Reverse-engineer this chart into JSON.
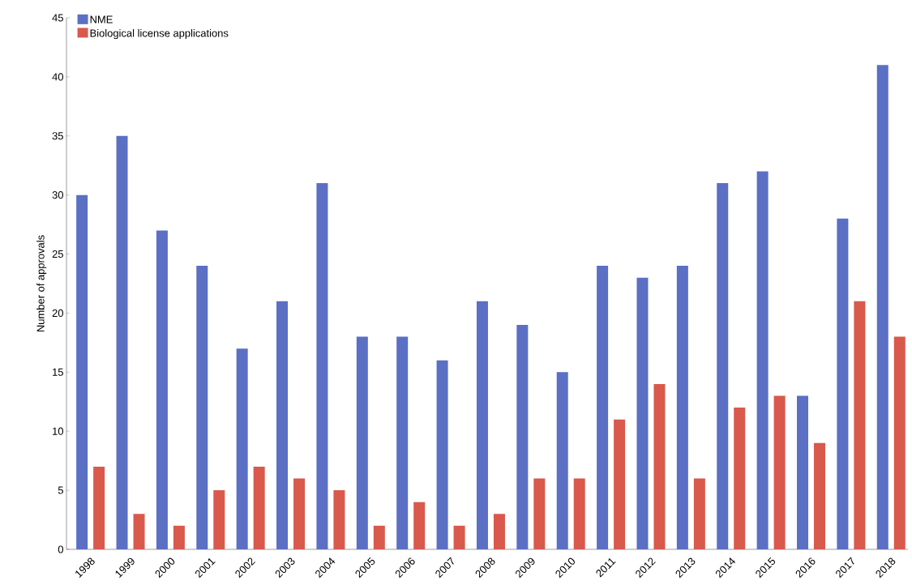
{
  "chart_data": {
    "type": "bar",
    "ylabel": "Number of approvals",
    "categories": [
      "1998",
      "1999",
      "2000",
      "2001",
      "2002",
      "2003",
      "2004",
      "2005",
      "2006",
      "2007",
      "2008",
      "2009",
      "2010",
      "2011",
      "2012",
      "2013",
      "2014",
      "2015",
      "2016",
      "2017",
      "2018"
    ],
    "series": [
      {
        "name": "NME",
        "color": "#5b6fc4",
        "values": [
          30,
          35,
          27,
          24,
          17,
          21,
          31,
          18,
          18,
          16,
          21,
          19,
          15,
          24,
          23,
          24,
          31,
          32,
          13,
          28,
          41
        ]
      },
      {
        "name": "Biological license applications",
        "color": "#d9594c",
        "values": [
          7,
          3,
          2,
          5,
          7,
          6,
          5,
          2,
          4,
          2,
          3,
          6,
          6,
          11,
          14,
          6,
          12,
          13,
          9,
          21,
          18
        ]
      }
    ],
    "ylim": [
      0,
      45
    ],
    "yticks": [
      0,
      5,
      10,
      15,
      20,
      25,
      30,
      35,
      40,
      45
    ],
    "grid": false,
    "legend": "top left"
  }
}
